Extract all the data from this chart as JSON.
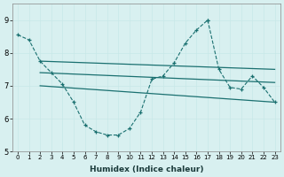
{
  "xlabel": "Humidex (Indice chaleur)",
  "bg_color": "#d8f0f0",
  "grid_color": "#c8e8e8",
  "line_color": "#1a7070",
  "xlim": [
    -0.5,
    23.5
  ],
  "ylim": [
    5,
    9.5
  ],
  "yticks": [
    5,
    6,
    7,
    8,
    9
  ],
  "xticks": [
    0,
    1,
    2,
    3,
    4,
    5,
    6,
    7,
    8,
    9,
    10,
    11,
    12,
    13,
    14,
    15,
    16,
    17,
    18,
    19,
    20,
    21,
    22,
    23
  ],
  "curve1": {
    "x": [
      0,
      1,
      2,
      3,
      4,
      5,
      6,
      7,
      8,
      9,
      10,
      11,
      12,
      13,
      14,
      15,
      16,
      17
    ],
    "y": [
      8.55,
      8.4,
      7.75,
      7.4,
      7.05,
      6.5,
      5.8,
      5.6,
      5.5,
      5.5,
      5.7,
      6.2,
      7.2,
      7.3,
      7.7,
      8.3,
      8.7,
      9.0
    ]
  },
  "curve2": {
    "x": [
      17,
      18,
      19,
      20,
      21,
      22,
      23
    ],
    "y": [
      9.0,
      7.5,
      6.95,
      6.9,
      7.3,
      6.95,
      6.5
    ]
  },
  "straight_lines": [
    {
      "x": [
        2,
        23
      ],
      "y": [
        7.75,
        7.5
      ]
    },
    {
      "x": [
        2,
        23
      ],
      "y": [
        7.4,
        7.1
      ]
    },
    {
      "x": [
        2,
        23
      ],
      "y": [
        7.0,
        6.5
      ]
    }
  ]
}
